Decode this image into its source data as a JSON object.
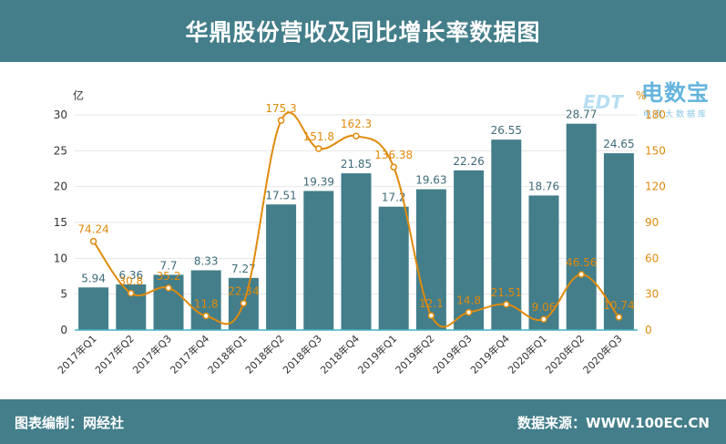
{
  "header": {
    "title": "华鼎股份营收及同比增长率数据图"
  },
  "footer": {
    "left": "图表编制：网经社",
    "right": "数据来源：WWW.100EC.CN"
  },
  "logo": {
    "main": "电数宝",
    "sub": "电商大数据库",
    "edt": "EDT"
  },
  "chart_data": {
    "type": "bar",
    "title": "华鼎股份营收及同比增长率数据图",
    "categories": [
      "2017年Q1",
      "2017年Q2",
      "2017年Q3",
      "2017年Q4",
      "2018年Q1",
      "2018年Q2",
      "2018年Q3",
      "2018年Q4",
      "2019年Q1",
      "2019年Q2",
      "2019年Q3",
      "2019年Q4",
      "2020年Q1",
      "2020年Q2",
      "2020年Q3"
    ],
    "series": [
      {
        "type": "bar",
        "axis": "left",
        "color": "#437e8a",
        "values": [
          5.94,
          6.36,
          7.7,
          8.33,
          7.27,
          17.51,
          19.39,
          21.85,
          17.2,
          19.63,
          22.26,
          26.55,
          18.76,
          28.77,
          24.65
        ],
        "labels": [
          "5.94",
          "6.36",
          "7.7",
          "8.33",
          "7.27",
          "17.51",
          "19.39",
          "21.85",
          "17.2",
          "19.63",
          "22.26",
          "26.55",
          "18.76",
          "28.77",
          "24.65"
        ]
      },
      {
        "type": "line",
        "axis": "right",
        "color": "#e08a0c",
        "values": [
          74.24,
          30.8,
          35.2,
          11.8,
          22.34,
          175.3,
          151.8,
          162.3,
          136.38,
          12.1,
          14.8,
          21.51,
          9.06,
          46.56,
          10.74
        ],
        "labels": [
          "74.24",
          "30.8",
          "35.2",
          "11.8",
          "22.34",
          "175.3",
          "151.8",
          "162.3",
          "136.38",
          "12.1",
          "14.8",
          "21.51",
          "9.06",
          "46.56",
          "10.74"
        ]
      }
    ],
    "ylabel_left": "亿",
    "ylabel_right": "%",
    "ylim_left": [
      0,
      30
    ],
    "yticks_left": [
      "0",
      "5",
      "10",
      "15",
      "20",
      "25",
      "30"
    ],
    "ylim_right": [
      0,
      180
    ],
    "yticks_right": [
      "0",
      "30",
      "60",
      "90",
      "120",
      "150",
      "180"
    ],
    "grid": true,
    "legend": "none"
  }
}
